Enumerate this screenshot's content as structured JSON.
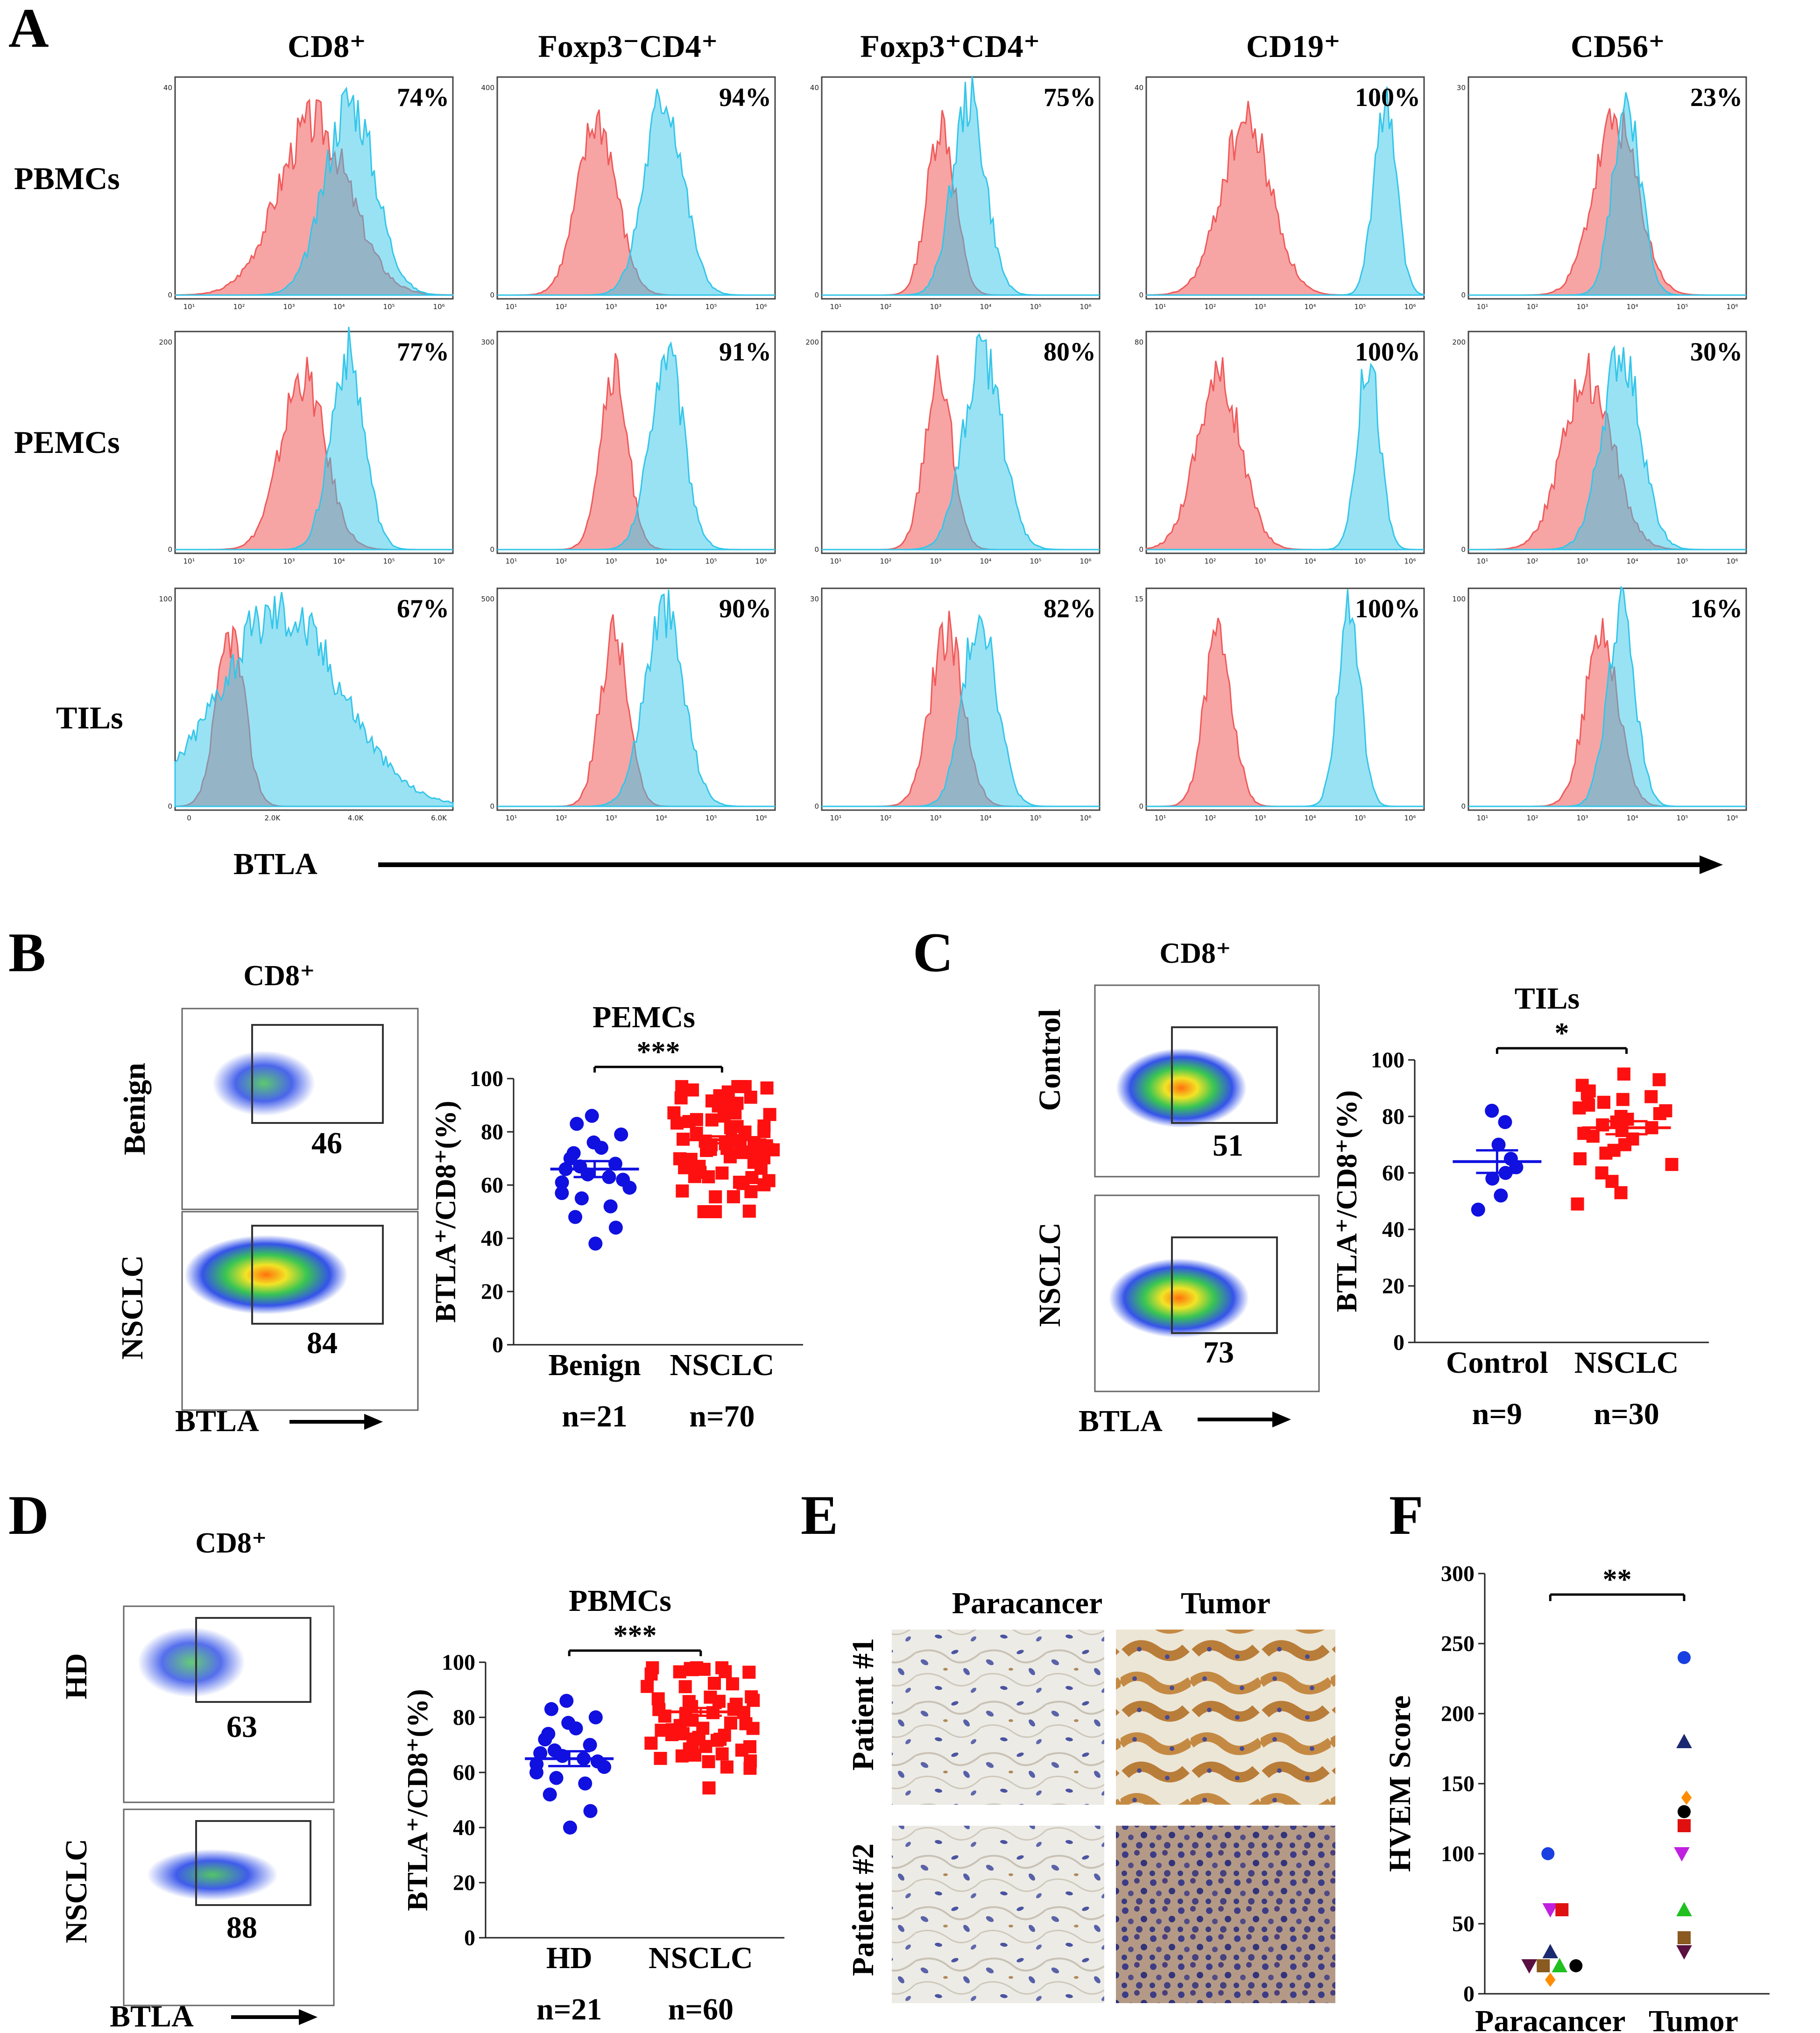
{
  "panels": {
    "A": {
      "letter": "A",
      "columns": [
        "CD8⁺",
        "Foxp3⁻CD4⁺",
        "Foxp3⁺CD4⁺",
        "CD19⁺",
        "CD56⁺"
      ],
      "rows": [
        "PBMCs",
        "PEMCs",
        "TILs"
      ],
      "percentages": [
        [
          "74%",
          "94%",
          "75%",
          "100%",
          "23%"
        ],
        [
          "77%",
          "91%",
          "80%",
          "100%",
          "30%"
        ],
        [
          "67%",
          "90%",
          "82%",
          "100%",
          "16%"
        ]
      ],
      "axis_label": "BTLA",
      "log_ticks": [
        "10¹",
        "10²",
        "10³",
        "10⁴",
        "10⁵",
        "10⁶"
      ],
      "linear_ticks": [
        "0",
        "2.0K",
        "4.0K",
        "6.0K"
      ],
      "colors": {
        "isotype": "#f05a5a",
        "btla": "#33c6ea",
        "overlap": "#9a8aa8"
      }
    },
    "B": {
      "letter": "B",
      "flow_title": "CD8⁺",
      "flow_rows": [
        "Benign",
        "NSCLC"
      ],
      "flow_values": [
        "46",
        "84"
      ],
      "flow_axis": "BTLA",
      "chart_title": "PEMCs",
      "sig": "***",
      "n_labels": [
        "n=21",
        "n=70"
      ]
    },
    "C": {
      "letter": "C",
      "flow_title": "CD8⁺",
      "flow_rows": [
        "Control",
        "NSCLC"
      ],
      "flow_values": [
        "51",
        "73"
      ],
      "flow_axis": "BTLA",
      "chart_title": "TILs",
      "sig": "*",
      "n_labels": [
        "n=9",
        "n=30"
      ]
    },
    "D": {
      "letter": "D",
      "flow_title": "CD8⁺",
      "flow_rows": [
        "HD",
        "NSCLC"
      ],
      "flow_values": [
        "63",
        "88"
      ],
      "flow_axis": "BTLA",
      "chart_title": "PBMCs",
      "sig": "***",
      "n_labels": [
        "n=21",
        "n=60"
      ]
    },
    "E": {
      "letter": "E",
      "columns": [
        "Paracancer",
        "Tumor"
      ],
      "rows": [
        "Patient #1",
        "Patient #2"
      ]
    },
    "F": {
      "letter": "F",
      "sig": "**"
    }
  },
  "chart_data": [
    {
      "id": "B",
      "type": "scatter",
      "title": "PEMCs",
      "ylabel": "BTLA⁺/CD8⁺(%)",
      "categories": [
        "Benign",
        "NSCLC"
      ],
      "ylim": [
        0,
        100
      ],
      "yticks": [
        0,
        20,
        40,
        60,
        80,
        100
      ],
      "colors": [
        "#1010e0",
        "#ff1010"
      ],
      "markers": [
        "circle",
        "square"
      ],
      "series": [
        {
          "name": "Benign",
          "values": [
            38,
            44,
            48,
            52,
            55,
            57,
            59,
            61,
            62,
            63,
            64,
            66,
            67,
            68,
            70,
            72,
            74,
            76,
            79,
            83,
            86
          ],
          "mean": 66,
          "sem": 3
        }
      ],
      "series2": {
        "name": "NSCLC",
        "n": 70,
        "min": 50,
        "max": 97,
        "mean": 77,
        "sem": 1.3
      }
    },
    {
      "id": "C",
      "type": "scatter",
      "title": "TILs",
      "ylabel": "BTLA⁺/CD8⁺(%)",
      "categories": [
        "Control",
        "NSCLC"
      ],
      "ylim": [
        0,
        100
      ],
      "yticks": [
        0,
        20,
        40,
        60,
        80,
        100
      ],
      "colors": [
        "#1010e0",
        "#ff1010"
      ],
      "markers": [
        "circle",
        "square"
      ],
      "series": [
        {
          "name": "Control",
          "values": [
            47,
            52,
            58,
            60,
            62,
            65,
            70,
            78,
            82
          ],
          "mean": 64,
          "sem": 4
        },
        {
          "name": "NSCLC",
          "values": [
            49,
            53,
            57,
            60,
            63,
            65,
            67,
            68,
            70,
            72,
            73,
            74,
            75,
            76,
            77,
            78,
            79,
            80,
            81,
            82,
            83,
            84,
            85,
            86,
            87,
            88,
            89,
            91,
            93,
            95
          ],
          "mean": 76,
          "sem": 2.3
        }
      ]
    },
    {
      "id": "D",
      "type": "scatter",
      "title": "PBMCs",
      "ylabel": "BTLA⁺/CD8⁺(%)",
      "categories": [
        "HD",
        "NSCLC"
      ],
      "ylim": [
        0,
        100
      ],
      "yticks": [
        0,
        20,
        40,
        60,
        80,
        100
      ],
      "colors": [
        "#1010e0",
        "#ff1010"
      ],
      "markers": [
        "circle",
        "square"
      ],
      "series": [
        {
          "name": "HD",
          "values": [
            40,
            46,
            52,
            56,
            58,
            60,
            62,
            63,
            64,
            65,
            66,
            67,
            68,
            70,
            72,
            74,
            76,
            78,
            80,
            83,
            86
          ],
          "mean": 65,
          "sem": 2.7
        }
      ],
      "series2": {
        "name": "NSCLC",
        "n": 60,
        "min": 50,
        "max": 98,
        "mean": 82,
        "sem": 1.4
      }
    },
    {
      "id": "F",
      "type": "scatter",
      "ylabel": "HVEM Score",
      "categories": [
        "Paracancer",
        "Tumor"
      ],
      "ylim": [
        0,
        300
      ],
      "yticks": [
        0,
        50,
        100,
        150,
        200,
        250,
        300
      ],
      "points": [
        {
          "group": "Paracancer",
          "value": 100,
          "marker": "circle",
          "color": "#1a3fe0"
        },
        {
          "group": "Paracancer",
          "value": 60,
          "marker": "tri-down",
          "color": "#c020e0"
        },
        {
          "group": "Paracancer",
          "value": 60,
          "marker": "square",
          "color": "#e01010"
        },
        {
          "group": "Paracancer",
          "value": 30,
          "marker": "tri-up",
          "color": "#1a2a70"
        },
        {
          "group": "Paracancer",
          "value": 20,
          "marker": "tri-down",
          "color": "#5a1040"
        },
        {
          "group": "Paracancer",
          "value": 20,
          "marker": "square",
          "color": "#8a5a20"
        },
        {
          "group": "Paracancer",
          "value": 20,
          "marker": "tri-up",
          "color": "#20c020"
        },
        {
          "group": "Paracancer",
          "value": 20,
          "marker": "circle",
          "color": "#000000"
        },
        {
          "group": "Paracancer",
          "value": 10,
          "marker": "diamond",
          "color": "#ff8c00"
        },
        {
          "group": "Tumor",
          "value": 240,
          "marker": "circle",
          "color": "#1a3fe0"
        },
        {
          "group": "Tumor",
          "value": 180,
          "marker": "tri-up",
          "color": "#1a2a70"
        },
        {
          "group": "Tumor",
          "value": 140,
          "marker": "diamond",
          "color": "#ff8c00"
        },
        {
          "group": "Tumor",
          "value": 130,
          "marker": "circle",
          "color": "#000000"
        },
        {
          "group": "Tumor",
          "value": 120,
          "marker": "square",
          "color": "#e01010"
        },
        {
          "group": "Tumor",
          "value": 100,
          "marker": "tri-down",
          "color": "#c020e0"
        },
        {
          "group": "Tumor",
          "value": 60,
          "marker": "tri-up",
          "color": "#20c020"
        },
        {
          "group": "Tumor",
          "value": 40,
          "marker": "square",
          "color": "#8a5a20"
        },
        {
          "group": "Tumor",
          "value": 30,
          "marker": "tri-down",
          "color": "#5a1040"
        }
      ]
    }
  ]
}
